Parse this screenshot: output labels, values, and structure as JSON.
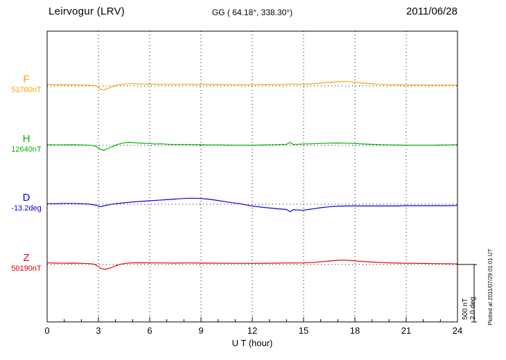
{
  "chart_data": {
    "type": "line",
    "station": "Leirvogur (LRV)",
    "coordinates_label": "GG ( 64.18°, 338.30°)",
    "date": "2011/06/28",
    "xlabel": "U T (hour)",
    "x_range": [
      0,
      24
    ],
    "x_ticks": [
      0,
      3,
      6,
      9,
      12,
      15,
      18,
      21,
      24
    ],
    "grid": "dotted vertical at 3h intervals, dotted horizontal baseline per trace",
    "plotted_at": "Plotted at 2011/07/29 01:01 UT",
    "scale_bar": {
      "nT_label": "500 nT",
      "deg_label": "2.0 deg",
      "nT_per_bar": 500,
      "deg_per_bar": 2.0
    },
    "series": [
      {
        "id": "F",
        "label": "F",
        "value_label": "51760nT",
        "baseline_value": 51760,
        "unit": "nT",
        "color": "#FFA500",
        "points": [
          [
            0,
            12
          ],
          [
            0.3,
            10
          ],
          [
            0.6,
            9
          ],
          [
            1,
            9
          ],
          [
            1.5,
            9
          ],
          [
            2,
            7
          ],
          [
            2.4,
            6
          ],
          [
            2.7,
            4
          ],
          [
            2.9,
            -5
          ],
          [
            3.1,
            -28
          ],
          [
            3.3,
            -38
          ],
          [
            3.5,
            -25
          ],
          [
            3.8,
            -8
          ],
          [
            4.1,
            6
          ],
          [
            4.5,
            16
          ],
          [
            4.8,
            20
          ],
          [
            5.2,
            18
          ],
          [
            5.6,
            16
          ],
          [
            6,
            15
          ],
          [
            6.5,
            14
          ],
          [
            7,
            13
          ],
          [
            7.5,
            13
          ],
          [
            8,
            14
          ],
          [
            8.5,
            14
          ],
          [
            9,
            13
          ],
          [
            9.5,
            12
          ],
          [
            10,
            12
          ],
          [
            10.5,
            11
          ],
          [
            11,
            10
          ],
          [
            11.5,
            10
          ],
          [
            12,
            10
          ],
          [
            12.5,
            10
          ],
          [
            13,
            11
          ],
          [
            13.5,
            12
          ],
          [
            14,
            13
          ],
          [
            14.3,
            16
          ],
          [
            14.6,
            13
          ],
          [
            15,
            14
          ],
          [
            15.5,
            18
          ],
          [
            16,
            24
          ],
          [
            16.5,
            30
          ],
          [
            17,
            36
          ],
          [
            17.5,
            38
          ],
          [
            18,
            32
          ],
          [
            18.5,
            24
          ],
          [
            19,
            18
          ],
          [
            19.5,
            13
          ],
          [
            20,
            10
          ],
          [
            20.5,
            9
          ],
          [
            21,
            8
          ],
          [
            21.5,
            8
          ],
          [
            22,
            7
          ],
          [
            22.5,
            6
          ],
          [
            23,
            6
          ],
          [
            23.5,
            6
          ],
          [
            24,
            6
          ]
        ]
      },
      {
        "id": "H",
        "label": "H",
        "value_label": "12640nT",
        "baseline_value": 12640,
        "unit": "nT",
        "color": "#00B000",
        "points": [
          [
            0,
            6
          ],
          [
            0.5,
            5
          ],
          [
            1,
            5
          ],
          [
            1.5,
            6
          ],
          [
            2,
            4
          ],
          [
            2.4,
            2
          ],
          [
            2.7,
            -2
          ],
          [
            2.9,
            -12
          ],
          [
            3.1,
            -32
          ],
          [
            3.3,
            -44
          ],
          [
            3.5,
            -30
          ],
          [
            3.8,
            -12
          ],
          [
            4.1,
            8
          ],
          [
            4.5,
            22
          ],
          [
            4.8,
            27
          ],
          [
            5.2,
            22
          ],
          [
            5.6,
            18
          ],
          [
            6,
            16
          ],
          [
            6.3,
            12
          ],
          [
            6.7,
            14
          ],
          [
            7,
            10
          ],
          [
            7.5,
            8
          ],
          [
            8,
            8
          ],
          [
            8.5,
            6
          ],
          [
            9,
            6
          ],
          [
            9.5,
            4
          ],
          [
            10,
            4
          ],
          [
            10.5,
            3
          ],
          [
            11,
            2
          ],
          [
            11.5,
            2
          ],
          [
            12,
            2
          ],
          [
            12.5,
            3
          ],
          [
            13,
            5
          ],
          [
            13.5,
            7
          ],
          [
            14,
            9
          ],
          [
            14.2,
            26
          ],
          [
            14.4,
            8
          ],
          [
            15,
            12
          ],
          [
            15.5,
            14
          ],
          [
            16,
            17
          ],
          [
            16.5,
            19
          ],
          [
            17,
            21
          ],
          [
            17.5,
            19
          ],
          [
            18,
            16
          ],
          [
            18.5,
            12
          ],
          [
            19,
            9
          ],
          [
            19.5,
            6
          ],
          [
            20,
            4
          ],
          [
            20.5,
            3
          ],
          [
            21,
            2
          ],
          [
            21.5,
            2
          ],
          [
            22,
            2
          ],
          [
            22.5,
            2
          ],
          [
            23,
            3
          ],
          [
            23.5,
            4
          ],
          [
            24,
            6
          ]
        ]
      },
      {
        "id": "D",
        "label": "D",
        "value_label": "-13.2deg",
        "baseline_value": -13.2,
        "unit": "deg",
        "color": "#0000E0",
        "points": [
          [
            0,
            0.02
          ],
          [
            0.5,
            0.02
          ],
          [
            1,
            0.03
          ],
          [
            1.5,
            0.03
          ],
          [
            2,
            0.02
          ],
          [
            2.5,
            0
          ],
          [
            2.9,
            -0.04
          ],
          [
            3.1,
            -0.09
          ],
          [
            3.3,
            -0.06
          ],
          [
            3.6,
            -0.02
          ],
          [
            4,
            0.02
          ],
          [
            4.5,
            0.05
          ],
          [
            5,
            0.08
          ],
          [
            5.5,
            0.1
          ],
          [
            6,
            0.12
          ],
          [
            6.5,
            0.14
          ],
          [
            7,
            0.16
          ],
          [
            7.5,
            0.18
          ],
          [
            8,
            0.2
          ],
          [
            8.3,
            0.21
          ],
          [
            8.6,
            0.21
          ],
          [
            9,
            0.2
          ],
          [
            9.5,
            0.17
          ],
          [
            10,
            0.13
          ],
          [
            10.5,
            0.08
          ],
          [
            11,
            0.04
          ],
          [
            11.3,
            0.02
          ],
          [
            11.6,
            -0.02
          ],
          [
            12,
            -0.06
          ],
          [
            12.5,
            -0.1
          ],
          [
            13,
            -0.13
          ],
          [
            13.5,
            -0.16
          ],
          [
            14,
            -0.18
          ],
          [
            14.2,
            -0.26
          ],
          [
            14.4,
            -0.19
          ],
          [
            14.7,
            -0.2
          ],
          [
            15,
            -0.21
          ],
          [
            15.3,
            -0.18
          ],
          [
            15.7,
            -0.15
          ],
          [
            16,
            -0.12
          ],
          [
            16.5,
            -0.09
          ],
          [
            17,
            -0.07
          ],
          [
            17.5,
            -0.06
          ],
          [
            18,
            -0.06
          ],
          [
            18.5,
            -0.06
          ],
          [
            19,
            -0.06
          ],
          [
            19.5,
            -0.06
          ],
          [
            20,
            -0.06
          ],
          [
            20.5,
            -0.06
          ],
          [
            21,
            -0.05
          ],
          [
            21.5,
            -0.05
          ],
          [
            22,
            -0.05
          ],
          [
            22.5,
            -0.05
          ],
          [
            23,
            -0.05
          ],
          [
            23.5,
            -0.05
          ],
          [
            24,
            -0.04
          ]
        ]
      },
      {
        "id": "Z",
        "label": "Z",
        "value_label": "50190nT",
        "baseline_value": 50190,
        "unit": "nT",
        "color": "#E00000",
        "points": [
          [
            0,
            14
          ],
          [
            0.5,
            12
          ],
          [
            1,
            11
          ],
          [
            1.5,
            12
          ],
          [
            2,
            10
          ],
          [
            2.4,
            8
          ],
          [
            2.7,
            4
          ],
          [
            2.9,
            -8
          ],
          [
            3.1,
            -32
          ],
          [
            3.4,
            -44
          ],
          [
            3.7,
            -30
          ],
          [
            4,
            -12
          ],
          [
            4.3,
            2
          ],
          [
            4.6,
            10
          ],
          [
            5,
            14
          ],
          [
            5.5,
            15
          ],
          [
            6,
            14
          ],
          [
            6.5,
            13
          ],
          [
            7,
            13
          ],
          [
            7.5,
            12
          ],
          [
            8,
            13
          ],
          [
            8.5,
            13
          ],
          [
            9,
            12
          ],
          [
            9.5,
            12
          ],
          [
            10,
            11
          ],
          [
            10.5,
            11
          ],
          [
            11,
            10
          ],
          [
            11.5,
            10
          ],
          [
            12,
            10
          ],
          [
            12.5,
            10
          ],
          [
            13,
            11
          ],
          [
            13.5,
            12
          ],
          [
            14,
            13
          ],
          [
            14.5,
            13
          ],
          [
            15,
            14
          ],
          [
            15.5,
            17
          ],
          [
            16,
            23
          ],
          [
            16.5,
            30
          ],
          [
            17,
            36
          ],
          [
            17.3,
            38
          ],
          [
            17.6,
            36
          ],
          [
            18,
            31
          ],
          [
            18.5,
            26
          ],
          [
            19,
            21
          ],
          [
            19.5,
            17
          ],
          [
            20,
            14
          ],
          [
            20.5,
            12
          ],
          [
            21,
            11
          ],
          [
            21.5,
            10
          ],
          [
            22,
            9
          ],
          [
            22.5,
            8
          ],
          [
            23,
            7
          ],
          [
            23.5,
            6
          ],
          [
            24,
            5
          ]
        ]
      }
    ]
  }
}
